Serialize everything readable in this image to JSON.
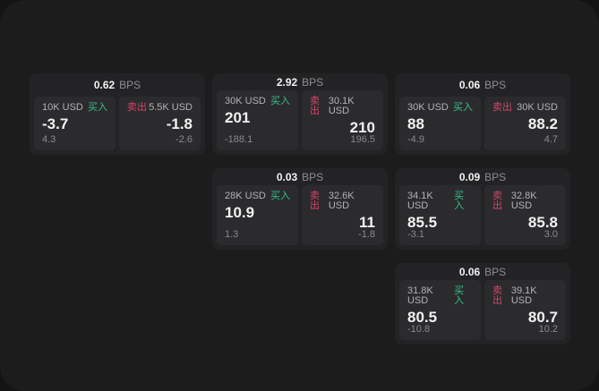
{
  "labels": {
    "bps_unit": "BPS",
    "buy": "买入",
    "sell": "卖出"
  },
  "colors": {
    "buy_green": "#35c08a",
    "sell_red": "#d8436a",
    "backdrop": "#141415",
    "window_background": "#1c1c1d",
    "card_background": "#232325",
    "panel_background": "#2b2b2d"
  },
  "cards": [
    {
      "grid": {
        "row": 1,
        "col": 1
      },
      "bps": "0.62",
      "buy": {
        "size": "10K USD",
        "price": "-3.7",
        "secondary": "4.3"
      },
      "sell": {
        "size": "5.5K USD",
        "price": "-1.8",
        "secondary": "-2.6"
      }
    },
    {
      "grid": {
        "row": 1,
        "col": 2
      },
      "bps": "2.92",
      "buy": {
        "size": "30K USD",
        "price": "201",
        "secondary": "-188.1"
      },
      "sell": {
        "size": "30.1K USD",
        "price": "210",
        "secondary": "196.5"
      }
    },
    {
      "grid": {
        "row": 1,
        "col": 3
      },
      "bps": "0.06",
      "buy": {
        "size": "30K USD",
        "price": "88",
        "secondary": "-4.9"
      },
      "sell": {
        "size": "30K USD",
        "price": "88.2",
        "secondary": "4.7"
      }
    },
    {
      "grid": {
        "row": 2,
        "col": 2
      },
      "bps": "0.03",
      "buy": {
        "size": "28K USD",
        "price": "10.9",
        "secondary": "1.3"
      },
      "sell": {
        "size": "32.6K USD",
        "price": "11",
        "secondary": "-1.8"
      }
    },
    {
      "grid": {
        "row": 2,
        "col": 3
      },
      "bps": "0.09",
      "buy": {
        "size": "34.1K USD",
        "price": "85.5",
        "secondary": "-3.1"
      },
      "sell": {
        "size": "32.8K USD",
        "price": "85.8",
        "secondary": "3.0"
      }
    },
    {
      "grid": {
        "row": 3,
        "col": 3
      },
      "bps": "0.06",
      "buy": {
        "size": "31.8K USD",
        "price": "80.5",
        "secondary": "-10.8"
      },
      "sell": {
        "size": "39.1K USD",
        "price": "80.7",
        "secondary": "10.2"
      }
    }
  ]
}
